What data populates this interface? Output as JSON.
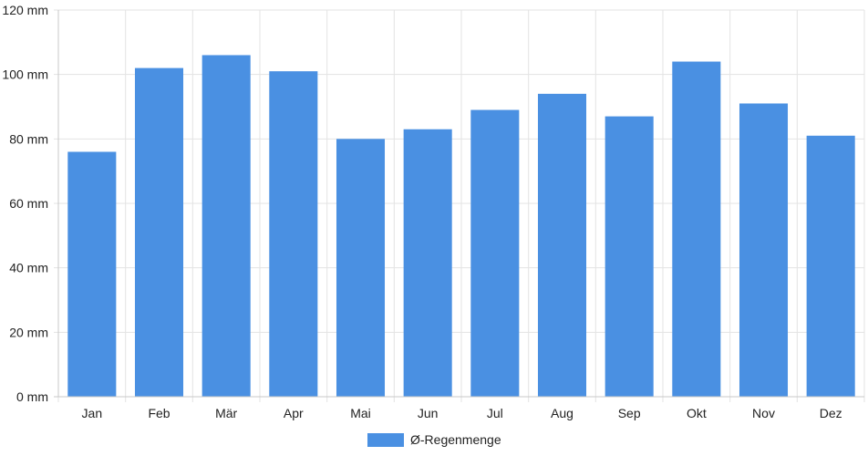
{
  "chart_data": {
    "type": "bar",
    "categories": [
      "Jan",
      "Feb",
      "Mär",
      "Apr",
      "Mai",
      "Jun",
      "Jul",
      "Aug",
      "Sep",
      "Okt",
      "Nov",
      "Dez"
    ],
    "series": [
      {
        "name": "Ø-Regenmenge",
        "color": "#4a90e2",
        "values": [
          76,
          102,
          106,
          101,
          80,
          83,
          89,
          94,
          87,
          104,
          91,
          81
        ]
      }
    ],
    "y_ticks": [
      "0 mm",
      "20 mm",
      "40 mm",
      "60 mm",
      "80 mm",
      "100 mm",
      "120 mm"
    ],
    "ylim": [
      0,
      120
    ],
    "y_step": 20,
    "grid": true,
    "legend_position": "bottom"
  }
}
